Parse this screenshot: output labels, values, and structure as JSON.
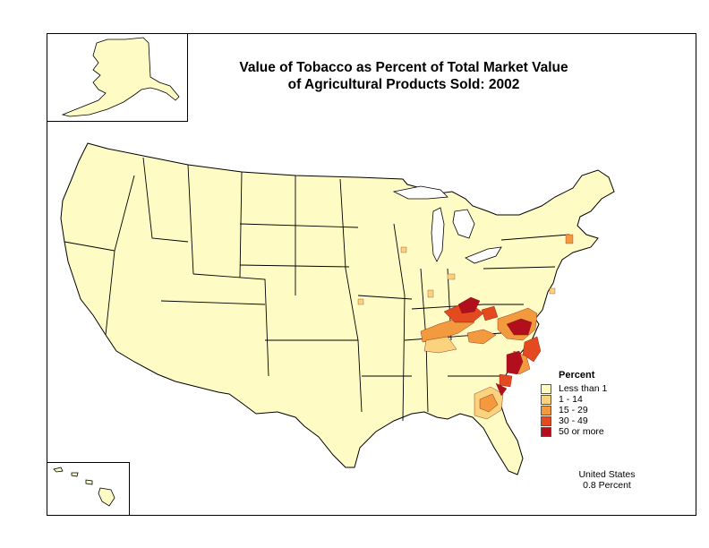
{
  "title_line1": "Value of Tobacco as Percent of Total Market Value",
  "title_line2": "of Agricultural Products Sold:  2002",
  "legend": {
    "title": "Percent",
    "items": [
      {
        "label": "Less than 1",
        "color": "#FFFBC4"
      },
      {
        "label": "1 - 14",
        "color": "#FBD27D"
      },
      {
        "label": "15 - 29",
        "color": "#F39A3F"
      },
      {
        "label": "30 - 49",
        "color": "#E34A1F"
      },
      {
        "label": "50 or more",
        "color": "#B20F1E"
      }
    ]
  },
  "summary": {
    "line1": "United States",
    "line2": "0.8 Percent"
  },
  "colors": {
    "land": "#FFFBC4",
    "border": "#000000"
  }
}
